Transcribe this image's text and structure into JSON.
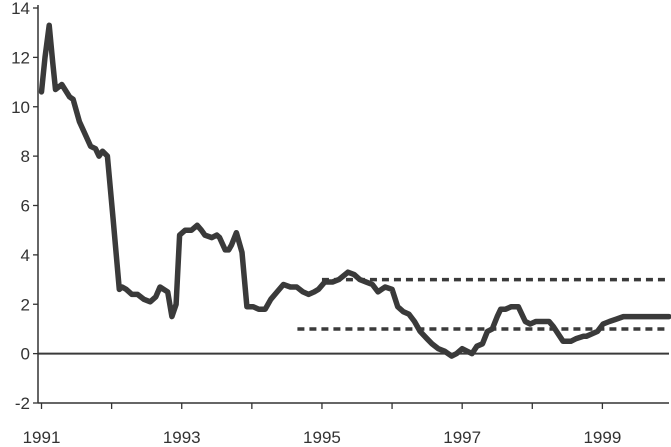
{
  "chart_data": {
    "type": "line",
    "title": "",
    "xlabel": "",
    "ylabel": "",
    "xlim": [
      1990.95,
      1999.95
    ],
    "ylim": [
      -2,
      14
    ],
    "yticks": [
      "-2",
      "0",
      "2",
      "4",
      "6",
      "8",
      "10",
      "12",
      "14"
    ],
    "xticks": [
      "1991",
      "1993",
      "1995",
      "1997",
      "1999"
    ],
    "grid": false,
    "legend": "none",
    "zero_line": 0,
    "reference_lines": [
      {
        "y": 3,
        "x_start": 1995.0,
        "x_end": 1999.95,
        "style": "dashed"
      },
      {
        "y": 1,
        "x_start": 1994.65,
        "x_end": 1999.95,
        "style": "dashed"
      }
    ],
    "colors": {
      "series": "#3a3a3a",
      "axis": "#333333",
      "reference": "#3a3a3a"
    },
    "series": [
      {
        "x": [
          1991.0,
          1991.05,
          1991.11,
          1991.16,
          1991.2,
          1991.29,
          1991.4,
          1991.45,
          1991.54,
          1991.7,
          1991.77,
          1991.82,
          1991.87,
          1991.94,
          1992.02,
          1992.11,
          1992.15,
          1992.21,
          1992.29,
          1992.37,
          1992.46,
          1992.55,
          1992.63,
          1992.69,
          1992.8,
          1992.86,
          1992.92,
          1992.97,
          1993.05,
          1993.14,
          1993.22,
          1993.28,
          1993.33,
          1993.43,
          1993.5,
          1993.54,
          1993.62,
          1993.67,
          1993.71,
          1993.78,
          1993.86,
          1993.93,
          1994.02,
          1994.1,
          1994.19,
          1994.27,
          1994.36,
          1994.45,
          1994.55,
          1994.64,
          1994.73,
          1994.81,
          1994.89,
          1994.95,
          1995.04,
          1995.15,
          1995.24,
          1995.37,
          1995.46,
          1995.54,
          1995.63,
          1995.72,
          1995.8,
          1995.9,
          1996.0,
          1996.08,
          1996.16,
          1996.24,
          1996.32,
          1996.4,
          1996.5,
          1996.57,
          1996.66,
          1996.75,
          1996.85,
          1996.92,
          1997.0,
          1997.07,
          1997.14,
          1997.21,
          1997.29,
          1997.36,
          1997.43,
          1997.5,
          1997.55,
          1997.62,
          1997.7,
          1997.8,
          1997.9,
          1997.97,
          1998.05,
          1998.14,
          1998.24,
          1998.3,
          1998.44,
          1998.55,
          1998.62,
          1998.73,
          1998.77,
          1998.85,
          1998.93,
          1999.01,
          1999.1,
          1999.2,
          1999.3,
          1999.45,
          1999.95
        ],
        "y": [
          10.6,
          12.0,
          13.3,
          11.8,
          10.7,
          10.9,
          10.4,
          10.3,
          9.4,
          8.4,
          8.3,
          8.0,
          8.2,
          8.0,
          5.5,
          2.6,
          2.7,
          2.6,
          2.4,
          2.4,
          2.2,
          2.1,
          2.3,
          2.7,
          2.5,
          1.5,
          2.0,
          4.8,
          5.0,
          5.0,
          5.2,
          5.0,
          4.8,
          4.7,
          4.8,
          4.7,
          4.2,
          4.2,
          4.4,
          4.9,
          4.1,
          1.9,
          1.9,
          1.8,
          1.8,
          2.2,
          2.5,
          2.8,
          2.7,
          2.7,
          2.5,
          2.4,
          2.5,
          2.6,
          2.9,
          2.9,
          3.0,
          3.3,
          3.2,
          3.0,
          2.9,
          2.8,
          2.5,
          2.7,
          2.6,
          1.9,
          1.7,
          1.6,
          1.3,
          0.9,
          0.6,
          0.4,
          0.2,
          0.1,
          -0.1,
          0.0,
          0.2,
          0.1,
          0.0,
          0.3,
          0.4,
          0.9,
          1.0,
          1.5,
          1.8,
          1.8,
          1.9,
          1.9,
          1.3,
          1.2,
          1.3,
          1.3,
          1.3,
          1.1,
          0.5,
          0.5,
          0.6,
          0.7,
          0.7,
          0.8,
          0.9,
          1.2,
          1.3,
          1.4,
          1.5,
          1.5,
          1.5
        ]
      }
    ]
  }
}
